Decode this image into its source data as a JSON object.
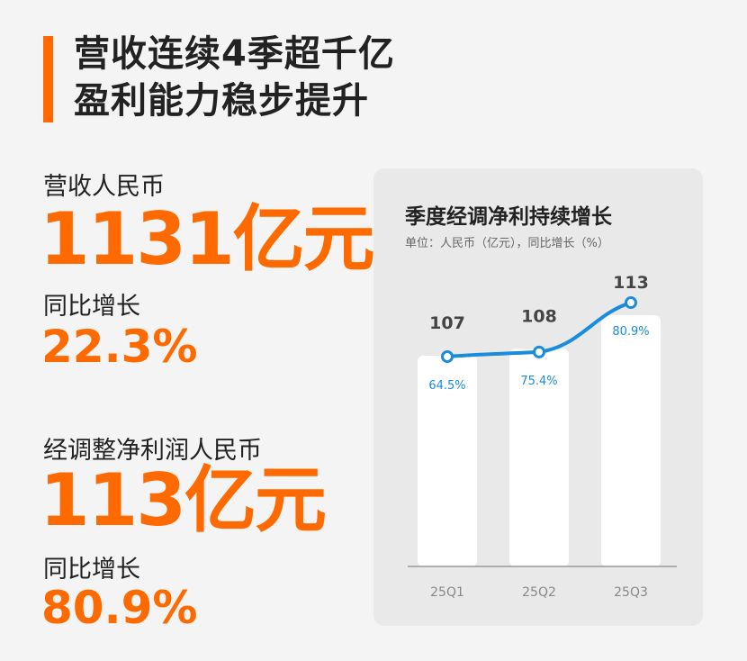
{
  "headline": {
    "line1": "营收连续4季超千亿",
    "line2": "盈利能力稳步提升"
  },
  "revenue": {
    "label": "营收人民币",
    "value": "1131亿元",
    "yoy_label": "同比增长",
    "yoy_value": "22.3%"
  },
  "net_profit": {
    "label": "经调整净利润人民币",
    "value": "113亿元",
    "yoy_label": "同比增长",
    "yoy_value": "80.9%"
  },
  "colors": {
    "accent": "#ff6a00",
    "line": "#1a8cdd",
    "bar": "#ffffff",
    "panel": "#e9e9e9"
  },
  "chart_data": {
    "type": "bar",
    "title": "季度经调净利持续增长",
    "subtitle": "单位：人民币（亿元），同比增长（%）",
    "categories": [
      "25Q1",
      "25Q2",
      "25Q3"
    ],
    "series": [
      {
        "values": [
          107,
          108,
          113
        ],
        "labels": [
          "107",
          "108",
          "113"
        ]
      },
      {
        "type": "line",
        "values": [
          64.5,
          75.4,
          80.9
        ],
        "labels": [
          "64.5%",
          "75.4%",
          "80.9%"
        ]
      }
    ],
    "grid": false
  }
}
